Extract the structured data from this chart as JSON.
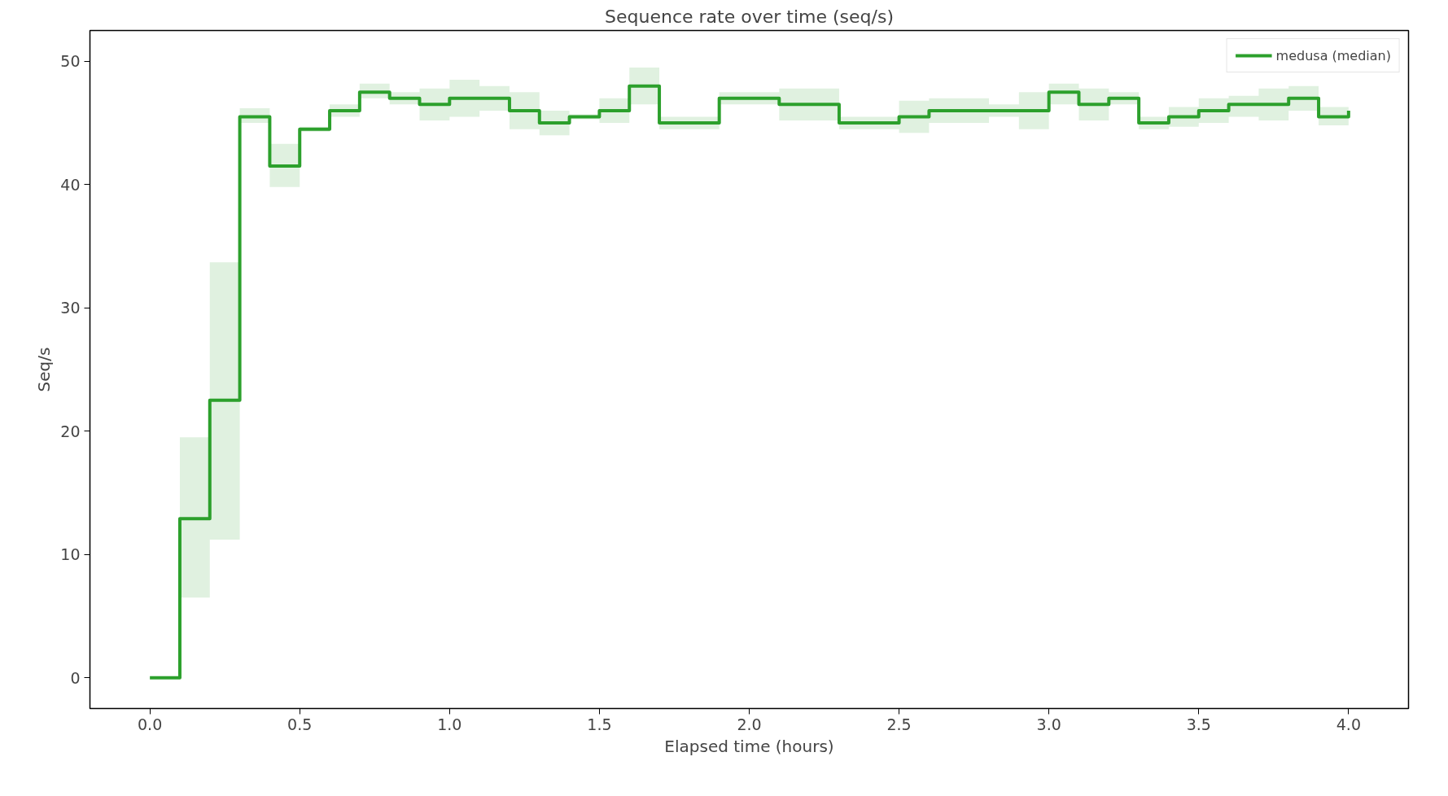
{
  "chart_data": {
    "type": "step",
    "title": "Sequence rate over time (seq/s)",
    "xlabel": "Elapsed time (hours)",
    "ylabel": "Seq/s",
    "xlim": [
      -0.2,
      4.2
    ],
    "ylim": [
      -2.5,
      52.5
    ],
    "xticks": [
      {
        "value": 0,
        "label": "0.0"
      },
      {
        "value": 0.5,
        "label": "0.5"
      },
      {
        "value": 1,
        "label": "1.0"
      },
      {
        "value": 1.5,
        "label": "1.5"
      },
      {
        "value": 2,
        "label": "2.0"
      },
      {
        "value": 2.5,
        "label": "2.5"
      },
      {
        "value": 3,
        "label": "3.0"
      },
      {
        "value": 3.5,
        "label": "3.5"
      },
      {
        "value": 4,
        "label": "4.0"
      }
    ],
    "yticks": [
      0,
      10,
      20,
      30,
      40,
      50
    ],
    "grid": false,
    "legend": "top right",
    "x": [
      0,
      0.1,
      0.2,
      0.3,
      0.4,
      0.5,
      0.6,
      0.7,
      0.8,
      0.9,
      1.0,
      1.1,
      1.2,
      1.3,
      1.4,
      1.5,
      1.6,
      1.7,
      1.8,
      1.9,
      2.0,
      2.1,
      2.2,
      2.3,
      2.4,
      2.5,
      2.6,
      2.7,
      2.8,
      2.9,
      3.0,
      3.1,
      3.2,
      3.3,
      3.4,
      3.5,
      3.6,
      3.7,
      3.8,
      3.9,
      4.0
    ],
    "series": [
      {
        "name": "medusa (median)",
        "color": "#2ca02c",
        "values": [
          0,
          12.9,
          22.5,
          45.5,
          41.5,
          44.5,
          46,
          47.5,
          47,
          46.5,
          47,
          47,
          46,
          45,
          45.5,
          46,
          48,
          45,
          45,
          47,
          47,
          46.5,
          46.5,
          45,
          45,
          45.5,
          46,
          46,
          46,
          46,
          47.5,
          46.5,
          47,
          45,
          45.5,
          46,
          46.5,
          46.5,
          47,
          45.5,
          46
        ],
        "lower": [
          0,
          6.5,
          11.2,
          45,
          39.8,
          44.3,
          45.5,
          47,
          46.5,
          45.2,
          45.5,
          46,
          44.5,
          44,
          45.3,
          45,
          46.5,
          44.5,
          44.5,
          46.5,
          46.5,
          45.2,
          45.2,
          44.5,
          44.5,
          44.2,
          45,
          45,
          45.5,
          44.5,
          46.5,
          45.2,
          46.5,
          44.5,
          44.7,
          45,
          45.5,
          45.2,
          46,
          44.8,
          44.8
        ],
        "upper": [
          0,
          19.5,
          33.7,
          46.2,
          43.3,
          44.7,
          46.5,
          48.2,
          47.5,
          47.8,
          48.5,
          48,
          47.5,
          46,
          45.7,
          47,
          49.5,
          45.5,
          45.5,
          47.5,
          47.5,
          47.8,
          47.8,
          45.5,
          45.5,
          46.8,
          47,
          47,
          46.5,
          47.5,
          48.2,
          47.8,
          47.5,
          45.5,
          46.3,
          47,
          47.2,
          47.8,
          48,
          46.3,
          46.3
        ]
      }
    ]
  }
}
